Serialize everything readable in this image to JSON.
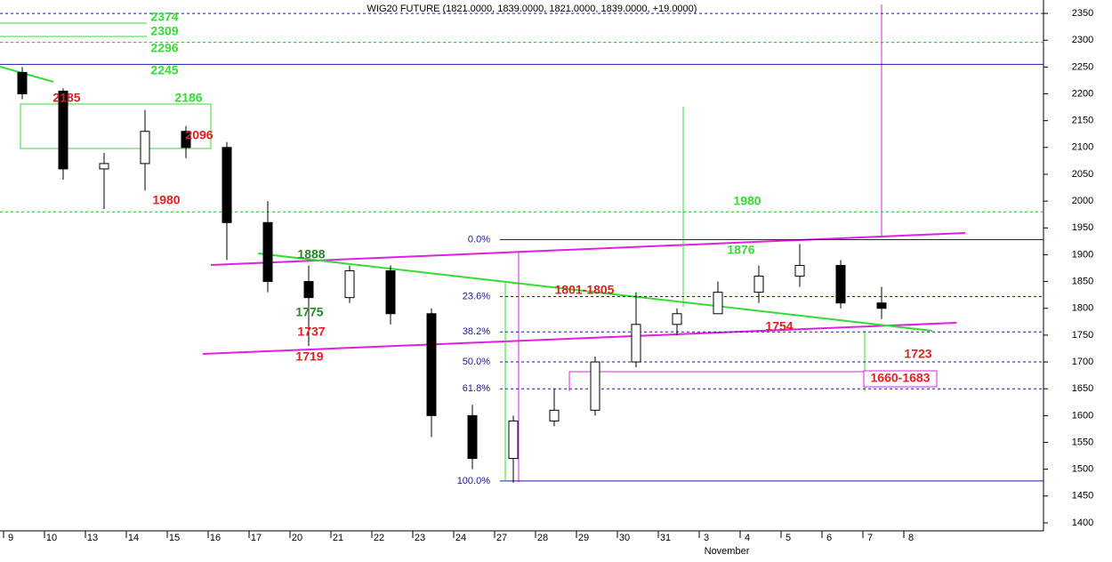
{
  "chart_data": {
    "type": "candlestick",
    "title": "WIG20 FUTURE (1821.0000, 1839.0000, 1821.0000, 1839.0000, +19.0000)",
    "month_label": "November",
    "categories": [
      "9",
      "10",
      "13",
      "14",
      "15",
      "16",
      "17",
      "20",
      "21",
      "22",
      "23",
      "24",
      "27",
      "28",
      "29",
      "30",
      "31",
      "3",
      "4",
      "5",
      "6",
      "7",
      "8"
    ],
    "open": [
      2240,
      2205,
      2060,
      2070,
      2130,
      2100,
      1960,
      1850,
      1820,
      1870,
      1790,
      1600,
      1520,
      1590,
      1610,
      1700,
      1770,
      1790,
      1830,
      1860,
      1880,
      1810,
      null
    ],
    "high": [
      2250,
      2210,
      2090,
      2170,
      2140,
      2110,
      2000,
      1880,
      1880,
      1880,
      1800,
      1620,
      1600,
      1650,
      1710,
      1830,
      1800,
      1850,
      1880,
      1920,
      1890,
      1840,
      null
    ],
    "low": [
      2190,
      2040,
      1985,
      2020,
      2080,
      1890,
      1830,
      1730,
      1810,
      1770,
      1560,
      1500,
      1475,
      1580,
      1600,
      1690,
      1750,
      1790,
      1810,
      1840,
      1800,
      1780,
      null
    ],
    "close": [
      2200,
      2060,
      2070,
      2130,
      2100,
      1960,
      1850,
      1820,
      1870,
      1790,
      1600,
      1520,
      1590,
      1610,
      1700,
      1770,
      1790,
      1830,
      1860,
      1880,
      1810,
      1800,
      null
    ],
    "ylim": [
      1385,
      2375
    ],
    "yticks": [
      1400,
      1450,
      1500,
      1550,
      1600,
      1650,
      1700,
      1750,
      1800,
      1850,
      1900,
      1950,
      2000,
      2050,
      2100,
      2150,
      2200,
      2250,
      2300,
      2350
    ],
    "levels": [
      {
        "value": 2350,
        "color": "#1a1aa0",
        "dashed": true
      },
      {
        "value": 2296,
        "color": "#22bb22",
        "dashed": true
      },
      {
        "value": 2255,
        "color": "#1a1aa0",
        "dashed": false
      },
      {
        "value": 1980,
        "color": "#22bb22",
        "dashed": true
      }
    ],
    "fib_levels": [
      {
        "label": "0.0%",
        "value": 1928,
        "dashed": false
      },
      {
        "label": "23.6%",
        "value": 1822,
        "dashed": true
      },
      {
        "label": "38.2%",
        "value": 1756,
        "dashed": true
      },
      {
        "label": "50.0%",
        "value": 1700,
        "dashed": true
      },
      {
        "label": "61.8%",
        "value": 1650,
        "dashed": true
      },
      {
        "label": "100.0%",
        "value": 1478,
        "dashed": false
      }
    ],
    "annotations": [
      {
        "text": "2374",
        "color": "#33dd33"
      },
      {
        "text": "2309",
        "color": "#33dd33"
      },
      {
        "text": "2296",
        "color": "#33dd33"
      },
      {
        "text": "2245",
        "color": "#33dd33"
      },
      {
        "text": "2185",
        "color": "#e02020"
      },
      {
        "text": "2186",
        "color": "#33dd33"
      },
      {
        "text": "2096",
        "color": "#e02020"
      },
      {
        "text": "1980",
        "color": "#e02020"
      },
      {
        "text": "1888",
        "color": "#228b22"
      },
      {
        "text": "1775",
        "color": "#228b22"
      },
      {
        "text": "1737",
        "color": "#e02020"
      },
      {
        "text": "1719",
        "color": "#e02020"
      },
      {
        "text": "1801-1805",
        "color": "#e02020"
      },
      {
        "text": "1980",
        "color": "#33dd33"
      },
      {
        "text": "1876",
        "color": "#33dd33"
      },
      {
        "text": "1754",
        "color": "#e02020"
      },
      {
        "text": "1723",
        "color": "#e02020"
      },
      {
        "text": "1660-1683",
        "color": "#e02020"
      }
    ]
  }
}
